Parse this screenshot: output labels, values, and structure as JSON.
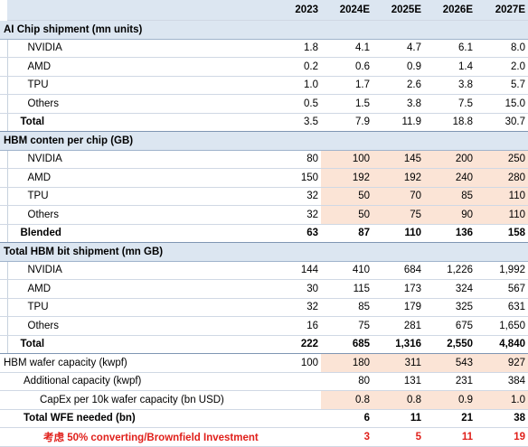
{
  "header": {
    "years": [
      "2023",
      "2024E",
      "2025E",
      "2026E",
      "2027E"
    ]
  },
  "ai_chip": {
    "title": "AI Chip shipment (mn units)",
    "rows": [
      {
        "label": "NVIDIA",
        "values": [
          "1.8",
          "4.1",
          "4.7",
          "6.1",
          "8.0"
        ]
      },
      {
        "label": "AMD",
        "values": [
          "0.2",
          "0.6",
          "0.9",
          "1.4",
          "2.0"
        ]
      },
      {
        "label": "TPU",
        "values": [
          "1.0",
          "1.7",
          "2.6",
          "3.8",
          "5.7"
        ]
      },
      {
        "label": "Others",
        "values": [
          "0.5",
          "1.5",
          "3.8",
          "7.5",
          "15.0"
        ]
      }
    ],
    "total": {
      "label": "Total",
      "values": [
        "3.5",
        "7.9",
        "11.9",
        "18.8",
        "30.7"
      ]
    }
  },
  "hbm_content": {
    "title": "HBM conten per chip (GB)",
    "rows": [
      {
        "label": "NVIDIA",
        "values": [
          "80",
          "100",
          "145",
          "200",
          "250"
        ]
      },
      {
        "label": "AMD",
        "values": [
          "150",
          "192",
          "192",
          "240",
          "280"
        ]
      },
      {
        "label": "TPU",
        "values": [
          "32",
          "50",
          "70",
          "85",
          "110"
        ]
      },
      {
        "label": "Others",
        "values": [
          "32",
          "50",
          "75",
          "90",
          "110"
        ]
      }
    ],
    "total": {
      "label": "Blended",
      "values": [
        "63",
        "87",
        "110",
        "136",
        "158"
      ]
    }
  },
  "hbm_bit": {
    "title": "Total HBM bit shipment (mn GB)",
    "rows": [
      {
        "label": "NVIDIA",
        "values": [
          "144",
          "410",
          "684",
          "1,226",
          "1,992"
        ]
      },
      {
        "label": "AMD",
        "values": [
          "30",
          "115",
          "173",
          "324",
          "567"
        ]
      },
      {
        "label": "TPU",
        "values": [
          "32",
          "85",
          "179",
          "325",
          "631"
        ]
      },
      {
        "label": "Others",
        "values": [
          "16",
          "75",
          "281",
          "675",
          "1,650"
        ]
      }
    ],
    "total": {
      "label": "Total",
      "values": [
        "222",
        "685",
        "1,316",
        "2,550",
        "4,840"
      ]
    }
  },
  "wafer": {
    "capacity": {
      "label": "HBM wafer capacity (kwpf)",
      "values": [
        "100",
        "180",
        "311",
        "543",
        "927"
      ]
    },
    "additional": {
      "label": "Additional capacity (kwpf)",
      "values": [
        "",
        "80",
        "131",
        "231",
        "384"
      ]
    },
    "capex": {
      "label": "CapEx per 10k wafer capacity (bn USD)",
      "values": [
        "",
        "0.8",
        "0.8",
        "0.9",
        "1.0"
      ]
    },
    "wfe": {
      "label": "Total WFE needed (bn)",
      "values": [
        "",
        "6",
        "11",
        "21",
        "38"
      ]
    },
    "brownfield": {
      "label": "考虑 50% converting/Brownfield Investment",
      "values": [
        "",
        "3",
        "5",
        "11",
        "19"
      ]
    }
  },
  "colors": {
    "section_bg": "#dce6f1",
    "highlight_bg": "#fbe4d6",
    "red_text": "#e0201b"
  }
}
